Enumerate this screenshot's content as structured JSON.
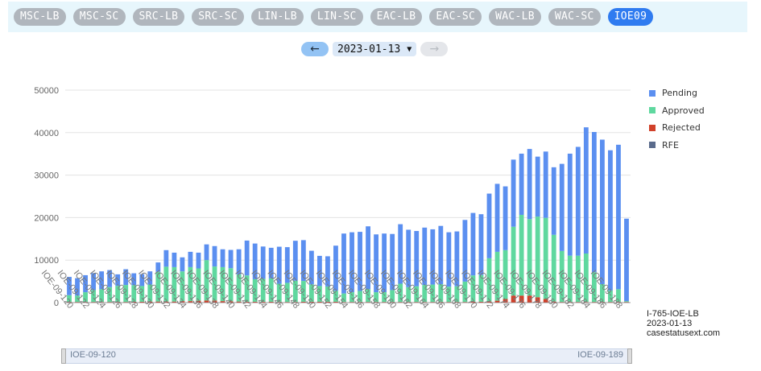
{
  "tabs": [
    {
      "label": "MSC-LB",
      "active": false
    },
    {
      "label": "MSC-SC",
      "active": false
    },
    {
      "label": "SRC-LB",
      "active": false
    },
    {
      "label": "SRC-SC",
      "active": false
    },
    {
      "label": "LIN-LB",
      "active": false
    },
    {
      "label": "LIN-SC",
      "active": false
    },
    {
      "label": "EAC-LB",
      "active": false
    },
    {
      "label": "EAC-SC",
      "active": false
    },
    {
      "label": "WAC-LB",
      "active": false
    },
    {
      "label": "WAC-SC",
      "active": false
    },
    {
      "label": "IOE09",
      "active": true
    }
  ],
  "date_nav": {
    "prev_icon": "arrow-left-icon",
    "date": "2023-01-13",
    "next_icon": "arrow-right-icon",
    "next_disabled": true
  },
  "watermark": {
    "line1": "I-765-IOE-LB",
    "line2": "2023-01-13",
    "line3": "casestatusext.com"
  },
  "slider": {
    "start_label": "IOE-09-120",
    "end_label": "IOE-09-189"
  },
  "colors": {
    "Pending": "#5b8ff0",
    "Approved": "#5fd89f",
    "Rejected": "#d1412a",
    "RFE": "#5a6b8c"
  },
  "chart_data": {
    "type": "bar",
    "stacked": true,
    "title": "",
    "xlabel": "",
    "ylabel": "",
    "ylim": [
      0,
      50000
    ],
    "yticks": [
      0,
      10000,
      20000,
      30000,
      40000,
      50000
    ],
    "legend_position": "right",
    "grid": true,
    "categories": [
      "IOE-09-120",
      "IOE-09-121",
      "IOE-09-122",
      "IOE-09-123",
      "IOE-09-124",
      "IOE-09-125",
      "IOE-09-126",
      "IOE-09-127",
      "IOE-09-128",
      "IOE-09-129",
      "IOE-09-130",
      "IOE-09-131",
      "IOE-09-132",
      "IOE-09-133",
      "IOE-09-134",
      "IOE-09-135",
      "IOE-09-136",
      "IOE-09-137",
      "IOE-09-138",
      "IOE-09-139",
      "IOE-09-140",
      "IOE-09-141",
      "IOE-09-142",
      "IOE-09-143",
      "IOE-09-144",
      "IOE-09-145",
      "IOE-09-146",
      "IOE-09-147",
      "IOE-09-148",
      "IOE-09-149",
      "IOE-09-150",
      "IOE-09-151",
      "IOE-09-152",
      "IOE-09-153",
      "IOE-09-154",
      "IOE-09-155",
      "IOE-09-156",
      "IOE-09-157",
      "IOE-09-158",
      "IOE-09-159",
      "IOE-09-160",
      "IOE-09-161",
      "IOE-09-162",
      "IOE-09-163",
      "IOE-09-164",
      "IOE-09-165",
      "IOE-09-166",
      "IOE-09-167",
      "IOE-09-168",
      "IOE-09-169",
      "IOE-09-170",
      "IOE-09-171",
      "IOE-09-172",
      "IOE-09-173",
      "IOE-09-174",
      "IOE-09-175",
      "IOE-09-176",
      "IOE-09-177",
      "IOE-09-178",
      "IOE-09-179",
      "IOE-09-180",
      "IOE-09-181",
      "IOE-09-182",
      "IOE-09-183",
      "IOE-09-184",
      "IOE-09-185",
      "IOE-09-186",
      "IOE-09-187",
      "IOE-09-188",
      "IOE-09-189"
    ],
    "tick_labels": [
      "IOE-09-120",
      "IOE-09-122",
      "IOE-09-124",
      "IOE-09-126",
      "IOE-09-128",
      "IOE-09-130",
      "IOE-09-132",
      "IOE-09-134",
      "IOE-09-136",
      "IOE-09-138",
      "IOE-09-140",
      "IOE-09-142",
      "IOE-09-144",
      "IOE-09-146",
      "IOE-09-148",
      "IOE-09-150",
      "IOE-09-152",
      "IOE-09-154",
      "IOE-09-156",
      "IOE-09-158",
      "IOE-09-160",
      "IOE-09-162",
      "IOE-09-164",
      "IOE-09-166",
      "IOE-09-168",
      "IOE-09-170",
      "IOE-09-172",
      "IOE-09-174",
      "IOE-09-176",
      "IOE-09-178",
      "IOE-09-180",
      "IOE-09-182",
      "IOE-09-184",
      "IOE-09-186",
      "IOE-09-188"
    ],
    "series": [
      {
        "name": "Pending",
        "values": [
          4300,
          4100,
          4000,
          4000,
          4200,
          4000,
          2700,
          3700,
          2800,
          2800,
          3100,
          2200,
          3900,
          3400,
          3300,
          3600,
          3700,
          3700,
          4800,
          4200,
          4300,
          5900,
          8200,
          8400,
          7600,
          7200,
          8700,
          8400,
          9400,
          9600,
          7900,
          7100,
          7100,
          10600,
          14100,
          14100,
          13900,
          14800,
          13600,
          13800,
          13200,
          14000,
          13500,
          13000,
          13500,
          13000,
          13700,
          12800,
          12900,
          14500,
          14700,
          14300,
          15200,
          16000,
          15000,
          15800,
          14400,
          16500,
          14100,
          15600,
          15900,
          20500,
          24000,
          25600,
          29700,
          33000,
          34000,
          33000,
          34000,
          19400
        ]
      },
      {
        "name": "Approved",
        "values": [
          1600,
          1500,
          2300,
          2800,
          3000,
          3500,
          3800,
          4000,
          3900,
          3700,
          4000,
          7000,
          8200,
          8100,
          7000,
          8000,
          7600,
          9500,
          8000,
          8000,
          7800,
          6400,
          6200,
          5300,
          5400,
          5500,
          4300,
          4500,
          5000,
          4900,
          4100,
          3700,
          3600,
          2600,
          2000,
          2300,
          2600,
          3000,
          2300,
          2300,
          2800,
          4300,
          3500,
          3700,
          4000,
          4100,
          4200,
          3600,
          3700,
          4800,
          6200,
          6300,
          10200,
          11500,
          11500,
          16200,
          19000,
          18000,
          19000,
          19100,
          15700,
          12000,
          10900,
          10900,
          11400,
          7000,
          4200,
          2700,
          3000,
          200
        ]
      },
      {
        "name": "Rejected",
        "values": [
          100,
          100,
          100,
          100,
          100,
          100,
          100,
          100,
          150,
          150,
          200,
          200,
          200,
          200,
          300,
          300,
          400,
          450,
          450,
          300,
          250,
          200,
          150,
          150,
          150,
          150,
          100,
          100,
          100,
          150,
          150,
          150,
          150,
          150,
          100,
          100,
          100,
          100,
          100,
          100,
          100,
          100,
          100,
          100,
          100,
          100,
          100,
          100,
          100,
          100,
          150,
          150,
          200,
          400,
          800,
          1600,
          1600,
          1600,
          1200,
          800,
          200,
          100,
          100,
          100,
          100,
          100,
          100,
          100,
          100,
          100
        ]
      },
      {
        "name": "RFE",
        "values": [
          50,
          50,
          50,
          50,
          50,
          50,
          50,
          50,
          50,
          50,
          50,
          50,
          50,
          50,
          50,
          50,
          50,
          50,
          50,
          50,
          50,
          50,
          50,
          50,
          50,
          50,
          50,
          50,
          50,
          50,
          50,
          50,
          50,
          50,
          50,
          50,
          50,
          50,
          50,
          50,
          50,
          50,
          50,
          50,
          50,
          50,
          50,
          50,
          50,
          50,
          50,
          50,
          50,
          50,
          50,
          50,
          50,
          50,
          50,
          50,
          50,
          50,
          50,
          50,
          50,
          50,
          50,
          50,
          50,
          50
        ]
      }
    ]
  }
}
